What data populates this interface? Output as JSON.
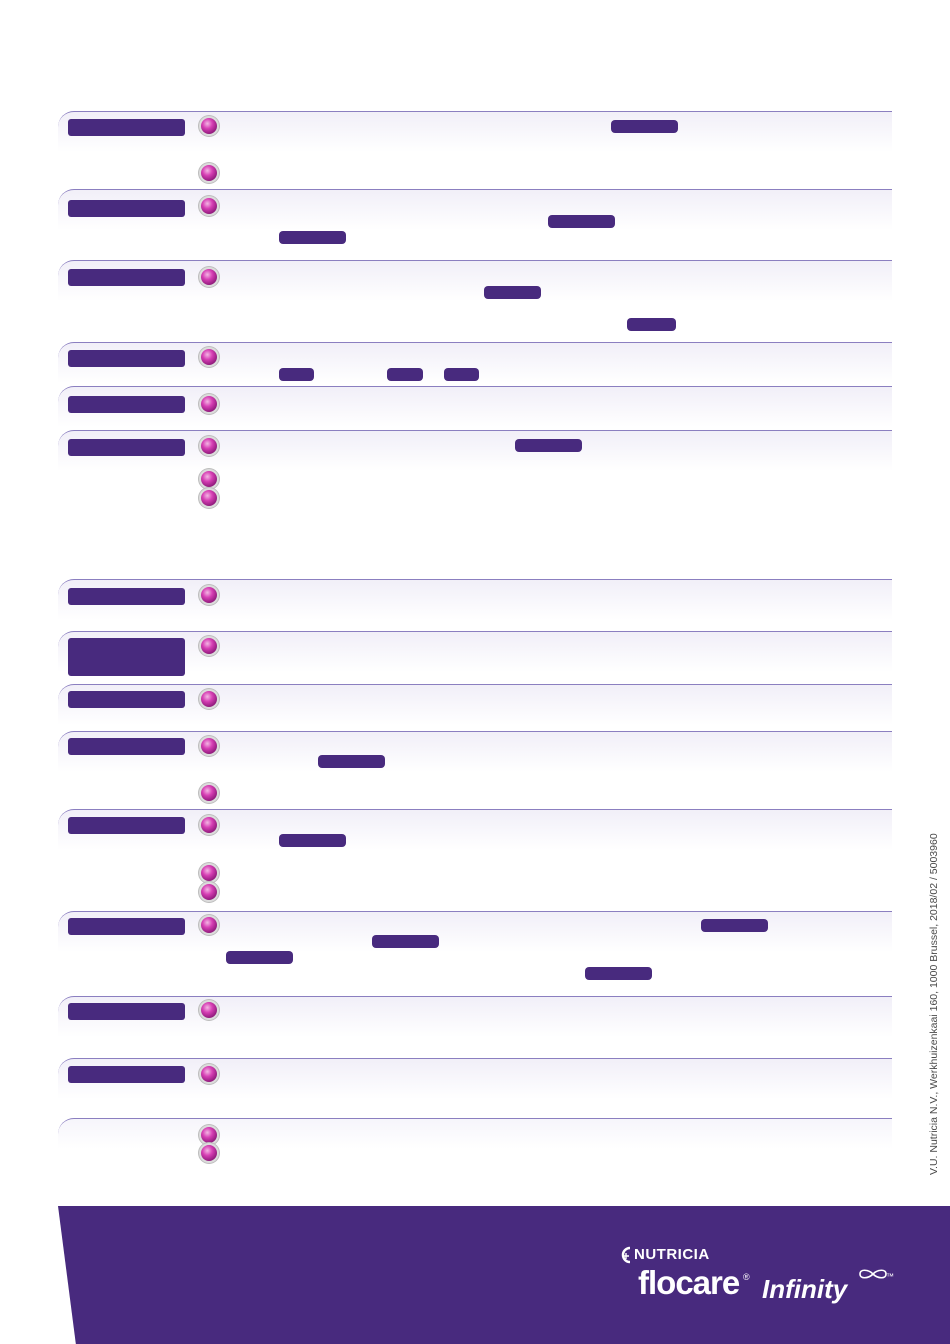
{
  "footer": {
    "credit": "V.U. Nutricia N.V., Werkhuizenkaai 160, 1000 Brussel, 2018/02 / 5003960",
    "brand": "NUTRICIA",
    "product": "flocare",
    "registered": "®",
    "product_line": "Infinity",
    "trademark": "™",
    "brand_icon": "nutricia-cross-icon",
    "infinity_icon": "infinity-symbol-icon"
  },
  "colors": {
    "accent": "#482a7e",
    "bullet": "#d63fb4",
    "divider": "#8b7fc0"
  }
}
